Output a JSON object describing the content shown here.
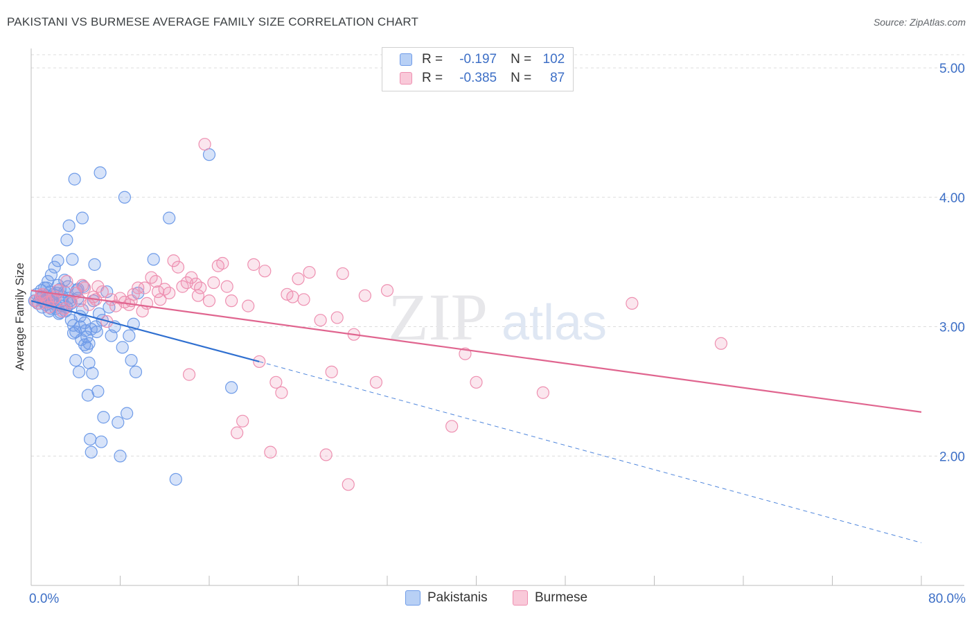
{
  "title": "PAKISTANI VS BURMESE AVERAGE FAMILY SIZE CORRELATION CHART",
  "source": "Source: ZipAtlas.com",
  "legend": {
    "rows": [
      {
        "r_label": "R =",
        "r_value": "-0.197",
        "n_label": "N =",
        "n_value": "102",
        "color": "#6e9be8"
      },
      {
        "r_label": "R =",
        "r_value": "-0.385",
        "n_label": "N =",
        "n_value": "87",
        "color": "#ee8fb0"
      }
    ]
  },
  "bottom_legend": [
    {
      "label": "Pakistanis",
      "color": "#6e9be8"
    },
    {
      "label": "Burmese",
      "color": "#ee8fb0"
    }
  ],
  "watermark": {
    "zip": "ZIP",
    "atlas": "atlas"
  },
  "chart_data": {
    "type": "scatter",
    "title": "PAKISTANI VS BURMESE AVERAGE FAMILY SIZE CORRELATION CHART",
    "xlabel": "",
    "ylabel": "Average Family Size",
    "xlim": [
      0,
      80
    ],
    "ylim": [
      1.0,
      5.15
    ],
    "x_tick_labels": [
      {
        "value": 0,
        "label": "0.0%"
      },
      {
        "value": 80,
        "label": "80.0%"
      }
    ],
    "y_ticks": [
      {
        "value": 2.0,
        "label": "2.00"
      },
      {
        "value": 3.0,
        "label": "3.00"
      },
      {
        "value": 4.0,
        "label": "4.00"
      },
      {
        "value": 5.0,
        "label": "5.00"
      }
    ],
    "x_minor_ticks": [
      0,
      8,
      16,
      24,
      32,
      40,
      48,
      56,
      64,
      72,
      80
    ],
    "grid": true,
    "series": [
      {
        "name": "Pakistanis",
        "color": "#6e9be8",
        "trend": {
          "x0": 0,
          "y0": 3.2,
          "x1": 20.5,
          "y1": 2.73,
          "dash_x1": 80,
          "dash_y1": 1.33
        },
        "points": [
          [
            0.3,
            3.2
          ],
          [
            0.5,
            3.25
          ],
          [
            0.6,
            3.18
          ],
          [
            0.8,
            3.22
          ],
          [
            0.9,
            3.28
          ],
          [
            1.0,
            3.15
          ],
          [
            1.1,
            3.2
          ],
          [
            1.2,
            3.3
          ],
          [
            1.3,
            3.17
          ],
          [
            1.4,
            3.24
          ],
          [
            1.5,
            3.35
          ],
          [
            1.6,
            3.12
          ],
          [
            1.7,
            3.27
          ],
          [
            1.8,
            3.4
          ],
          [
            1.9,
            3.19
          ],
          [
            2.0,
            3.21
          ],
          [
            2.1,
            3.46
          ],
          [
            2.2,
            3.14
          ],
          [
            2.3,
            3.26
          ],
          [
            2.4,
            3.51
          ],
          [
            2.5,
            3.1
          ],
          [
            2.6,
            3.29
          ],
          [
            2.7,
            3.16
          ],
          [
            2.8,
            3.23
          ],
          [
            3.0,
            3.36
          ],
          [
            3.1,
            3.12
          ],
          [
            3.2,
            3.67
          ],
          [
            3.3,
            3.31
          ],
          [
            3.4,
            3.78
          ],
          [
            3.5,
            3.2
          ],
          [
            3.6,
            3.05
          ],
          [
            3.7,
            3.52
          ],
          [
            3.8,
            2.95
          ],
          [
            3.9,
            4.14
          ],
          [
            4.0,
            2.74
          ],
          [
            4.1,
            3.28
          ],
          [
            4.2,
            3.22
          ],
          [
            4.3,
            2.65
          ],
          [
            4.4,
            3.0
          ],
          [
            4.5,
            2.9
          ],
          [
            4.6,
            3.84
          ],
          [
            4.7,
            3.31
          ],
          [
            4.8,
            2.86
          ],
          [
            4.9,
            2.97
          ],
          [
            5.0,
            2.84
          ],
          [
            5.1,
            2.47
          ],
          [
            5.2,
            2.72
          ],
          [
            5.3,
            2.13
          ],
          [
            5.4,
            2.03
          ],
          [
            5.5,
            2.64
          ],
          [
            5.6,
            3.2
          ],
          [
            5.7,
            3.48
          ],
          [
            5.8,
            3.0
          ],
          [
            5.9,
            2.96
          ],
          [
            6.0,
            2.5
          ],
          [
            6.1,
            3.1
          ],
          [
            6.2,
            4.19
          ],
          [
            6.3,
            2.11
          ],
          [
            6.4,
            3.05
          ],
          [
            6.5,
            2.3
          ],
          [
            6.8,
            3.27
          ],
          [
            7.0,
            3.15
          ],
          [
            7.2,
            2.93
          ],
          [
            7.5,
            3.0
          ],
          [
            7.8,
            2.26
          ],
          [
            8.0,
            2.0
          ],
          [
            8.2,
            2.84
          ],
          [
            8.4,
            4.0
          ],
          [
            8.6,
            2.33
          ],
          [
            8.8,
            2.93
          ],
          [
            9.0,
            2.74
          ],
          [
            9.2,
            3.02
          ],
          [
            9.4,
            2.65
          ],
          [
            9.6,
            3.26
          ],
          [
            11.0,
            3.52
          ],
          [
            12.4,
            3.84
          ],
          [
            13.0,
            1.82
          ],
          [
            16.0,
            4.33
          ],
          [
            18.0,
            2.53
          ],
          [
            1.0,
            3.23
          ],
          [
            1.2,
            3.19
          ],
          [
            1.4,
            3.3
          ],
          [
            1.6,
            3.21
          ],
          [
            1.8,
            3.14
          ],
          [
            2.0,
            3.25
          ],
          [
            2.2,
            3.17
          ],
          [
            2.4,
            3.32
          ],
          [
            2.6,
            3.11
          ],
          [
            2.8,
            3.2
          ],
          [
            3.0,
            3.27
          ],
          [
            3.2,
            3.15
          ],
          [
            3.4,
            3.22
          ],
          [
            3.6,
            3.18
          ],
          [
            3.8,
            3.01
          ],
          [
            4.0,
            2.96
          ],
          [
            4.2,
            3.29
          ],
          [
            4.4,
            3.08
          ],
          [
            4.6,
            3.13
          ],
          [
            4.8,
            3.03
          ],
          [
            5.0,
            2.92
          ],
          [
            5.2,
            2.87
          ],
          [
            5.4,
            2.98
          ]
        ]
      },
      {
        "name": "Burmese",
        "color": "#ee8fb0",
        "trend": {
          "x0": 0,
          "y0": 3.28,
          "x1": 80,
          "y1": 2.34
        },
        "points": [
          [
            0.4,
            3.2
          ],
          [
            0.7,
            3.18
          ],
          [
            1.0,
            3.25
          ],
          [
            1.3,
            3.22
          ],
          [
            1.6,
            3.15
          ],
          [
            2.0,
            3.21
          ],
          [
            2.4,
            3.28
          ],
          [
            2.8,
            3.12
          ],
          [
            3.2,
            3.35
          ],
          [
            3.6,
            3.19
          ],
          [
            4.0,
            3.26
          ],
          [
            4.4,
            3.2
          ],
          [
            4.8,
            3.3
          ],
          [
            5.2,
            3.17
          ],
          [
            5.6,
            3.23
          ],
          [
            6.0,
            3.31
          ],
          [
            6.4,
            3.27
          ],
          [
            6.8,
            3.04
          ],
          [
            7.2,
            3.21
          ],
          [
            7.6,
            3.16
          ],
          [
            8.0,
            3.22
          ],
          [
            8.4,
            3.19
          ],
          [
            8.8,
            3.17
          ],
          [
            9.2,
            3.25
          ],
          [
            9.6,
            3.3
          ],
          [
            10.0,
            3.12
          ],
          [
            10.4,
            3.18
          ],
          [
            10.8,
            3.38
          ],
          [
            11.2,
            3.35
          ],
          [
            11.6,
            3.21
          ],
          [
            12.0,
            3.29
          ],
          [
            12.4,
            3.26
          ],
          [
            12.8,
            3.51
          ],
          [
            13.2,
            3.46
          ],
          [
            13.6,
            3.31
          ],
          [
            14.0,
            3.34
          ],
          [
            14.4,
            3.38
          ],
          [
            14.8,
            3.33
          ],
          [
            15.2,
            3.3
          ],
          [
            15.6,
            4.41
          ],
          [
            16.0,
            3.2
          ],
          [
            16.4,
            3.34
          ],
          [
            16.8,
            3.47
          ],
          [
            17.2,
            3.49
          ],
          [
            17.6,
            3.31
          ],
          [
            18.0,
            3.2
          ],
          [
            18.5,
            2.18
          ],
          [
            19.0,
            2.27
          ],
          [
            19.5,
            3.16
          ],
          [
            20.0,
            3.48
          ],
          [
            20.5,
            2.73
          ],
          [
            21.0,
            3.43
          ],
          [
            21.5,
            2.03
          ],
          [
            22.0,
            2.57
          ],
          [
            22.5,
            2.49
          ],
          [
            23.0,
            3.25
          ],
          [
            23.5,
            3.23
          ],
          [
            24.0,
            3.37
          ],
          [
            24.5,
            3.21
          ],
          [
            25.0,
            3.42
          ],
          [
            26.0,
            3.05
          ],
          [
            26.5,
            2.01
          ],
          [
            27.0,
            2.65
          ],
          [
            27.5,
            3.07
          ],
          [
            28.0,
            3.41
          ],
          [
            28.5,
            1.78
          ],
          [
            29.0,
            2.94
          ],
          [
            30.0,
            3.24
          ],
          [
            31.0,
            2.57
          ],
          [
            32.0,
            3.28
          ],
          [
            37.8,
            2.23
          ],
          [
            39.0,
            2.79
          ],
          [
            40.0,
            2.57
          ],
          [
            46.0,
            2.49
          ],
          [
            54.0,
            3.18
          ],
          [
            62.0,
            2.87
          ],
          [
            0.9,
            3.24
          ],
          [
            1.5,
            3.19
          ],
          [
            2.2,
            3.23
          ],
          [
            3.0,
            3.14
          ],
          [
            4.6,
            3.32
          ],
          [
            5.8,
            3.21
          ],
          [
            9.0,
            3.2
          ],
          [
            10.2,
            3.3
          ],
          [
            11.4,
            3.27
          ],
          [
            14.2,
            2.63
          ],
          [
            15.0,
            3.24
          ]
        ]
      }
    ]
  }
}
